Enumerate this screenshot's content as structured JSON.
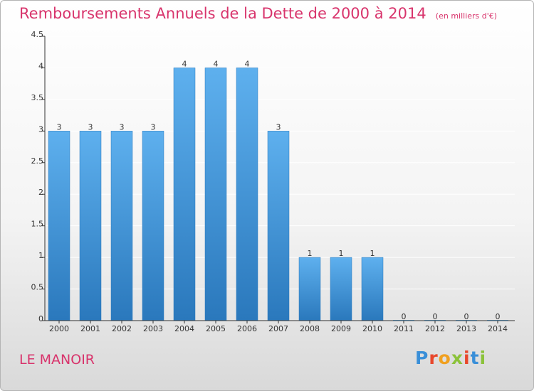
{
  "header": {
    "title": "Remboursements Annuels de la Dette de 2000 à 2014",
    "subtitle": "(en milliers d'€)"
  },
  "footer": {
    "place": "LE MANOIR",
    "logo_text": "Proxiti",
    "logo_colors": [
      "#3a8fd8",
      "#e8472c",
      "#f0a020",
      "#8bc23a",
      "#e8472c",
      "#3a8fd8",
      "#8bc23a"
    ]
  },
  "colors": {
    "title": "#d8346c",
    "bar_light": "#5eb0ee",
    "bar_dark": "#2a78bc",
    "axis": "#333333",
    "grid": "#ffffff"
  },
  "chart_data": {
    "type": "bar",
    "title": "Remboursements Annuels de la Dette de 2000 à 2014",
    "subtitle": "(en milliers d'€)",
    "categories": [
      "2000",
      "2001",
      "2002",
      "2003",
      "2004",
      "2005",
      "2006",
      "2007",
      "2008",
      "2009",
      "2010",
      "2011",
      "2012",
      "2013",
      "2014"
    ],
    "values": [
      3,
      3,
      3,
      3,
      4,
      4,
      4,
      3,
      1,
      1,
      1,
      0,
      0,
      0,
      0
    ],
    "data_labels": [
      "3",
      "3",
      "3",
      "3",
      "4",
      "4",
      "4",
      "3",
      "1",
      "1",
      "1",
      "0",
      "0",
      "0",
      "0"
    ],
    "yticks": [
      0,
      0.5,
      1,
      1.5,
      2,
      2.5,
      3,
      3.5,
      4,
      4.5
    ],
    "ytick_labels": [
      "0",
      "0.5",
      "1",
      "1.5",
      "2",
      "2.5",
      "3",
      "3.5",
      "4",
      "4.5"
    ],
    "ylim": [
      0,
      4.5
    ],
    "xlabel": "",
    "ylabel": "",
    "grid": true,
    "legend": false
  }
}
